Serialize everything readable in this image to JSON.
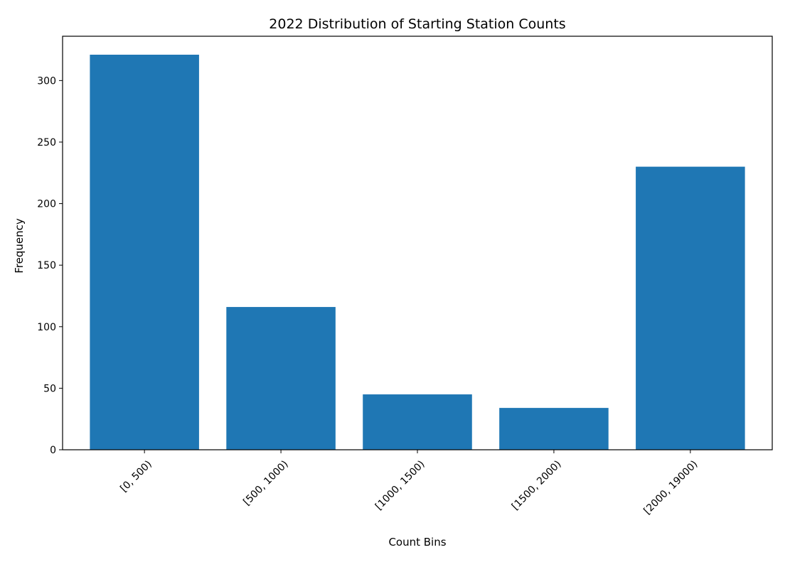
{
  "chart_data": {
    "type": "bar",
    "title": "2022 Distribution of Starting Station Counts",
    "xlabel": "Count Bins",
    "ylabel": "Frequency",
    "categories": [
      "[0, 500)",
      "[500, 1000)",
      "[1000, 1500)",
      "[1500, 2000)",
      "[2000, 19000)"
    ],
    "values": [
      321,
      116,
      45,
      34,
      230
    ],
    "ylim": [
      0,
      336
    ],
    "yticks": [
      0,
      50,
      100,
      150,
      200,
      250,
      300
    ],
    "grid": false,
    "legend": "none",
    "bar_color": "#1f77b4"
  }
}
